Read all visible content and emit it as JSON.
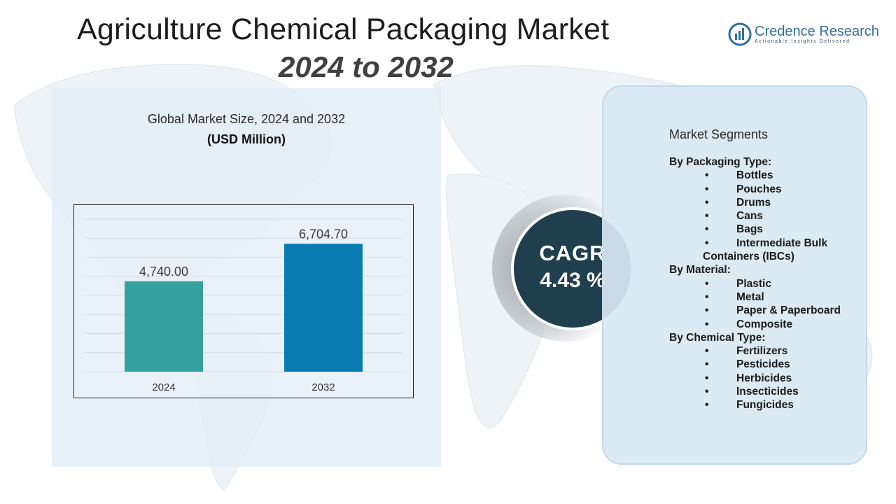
{
  "header": {
    "title": "Agriculture Chemical Packaging Market",
    "years": "2024 to 2032"
  },
  "logo": {
    "name": "Credence Research",
    "tagline": "Actionable Insights Delivered"
  },
  "chart_data": {
    "type": "bar",
    "title": "Global Market Size, 2024 and 2032",
    "subtitle": "(USD Million)",
    "categories": [
      "2024",
      "2032"
    ],
    "values": [
      4740.0,
      6704.7
    ],
    "data_labels": [
      "4,740.00",
      "6,704.70"
    ],
    "colors": [
      "#35a19f",
      "#0a7bb0"
    ],
    "ylim": [
      0,
      8000
    ],
    "grid": true,
    "legend": "none"
  },
  "cagr": {
    "label": "CAGR",
    "value": "4.43 %"
  },
  "segments": {
    "title": "Market Segments",
    "groups": [
      {
        "heading": "By Packaging Type:",
        "items": [
          "Bottles",
          "Pouches",
          "Drums",
          "Cans",
          "Bags",
          "Intermediate Bulk"
        ],
        "continuation": "Containers (IBCs)"
      },
      {
        "heading": "By Material:",
        "items": [
          "Plastic",
          "Metal",
          "Paper & Paperboard",
          "Composite"
        ]
      },
      {
        "heading": "By Chemical Type:",
        "items": [
          "Fertilizers",
          "Pesticides",
          "Herbicides",
          "Insecticides",
          "Fungicides"
        ]
      }
    ]
  },
  "colors": {
    "panel_left": "#e2eef7",
    "panel_right": "#d9e8f2",
    "cagr_circle": "#1f3f4e",
    "brand": "#2f6f9f"
  }
}
